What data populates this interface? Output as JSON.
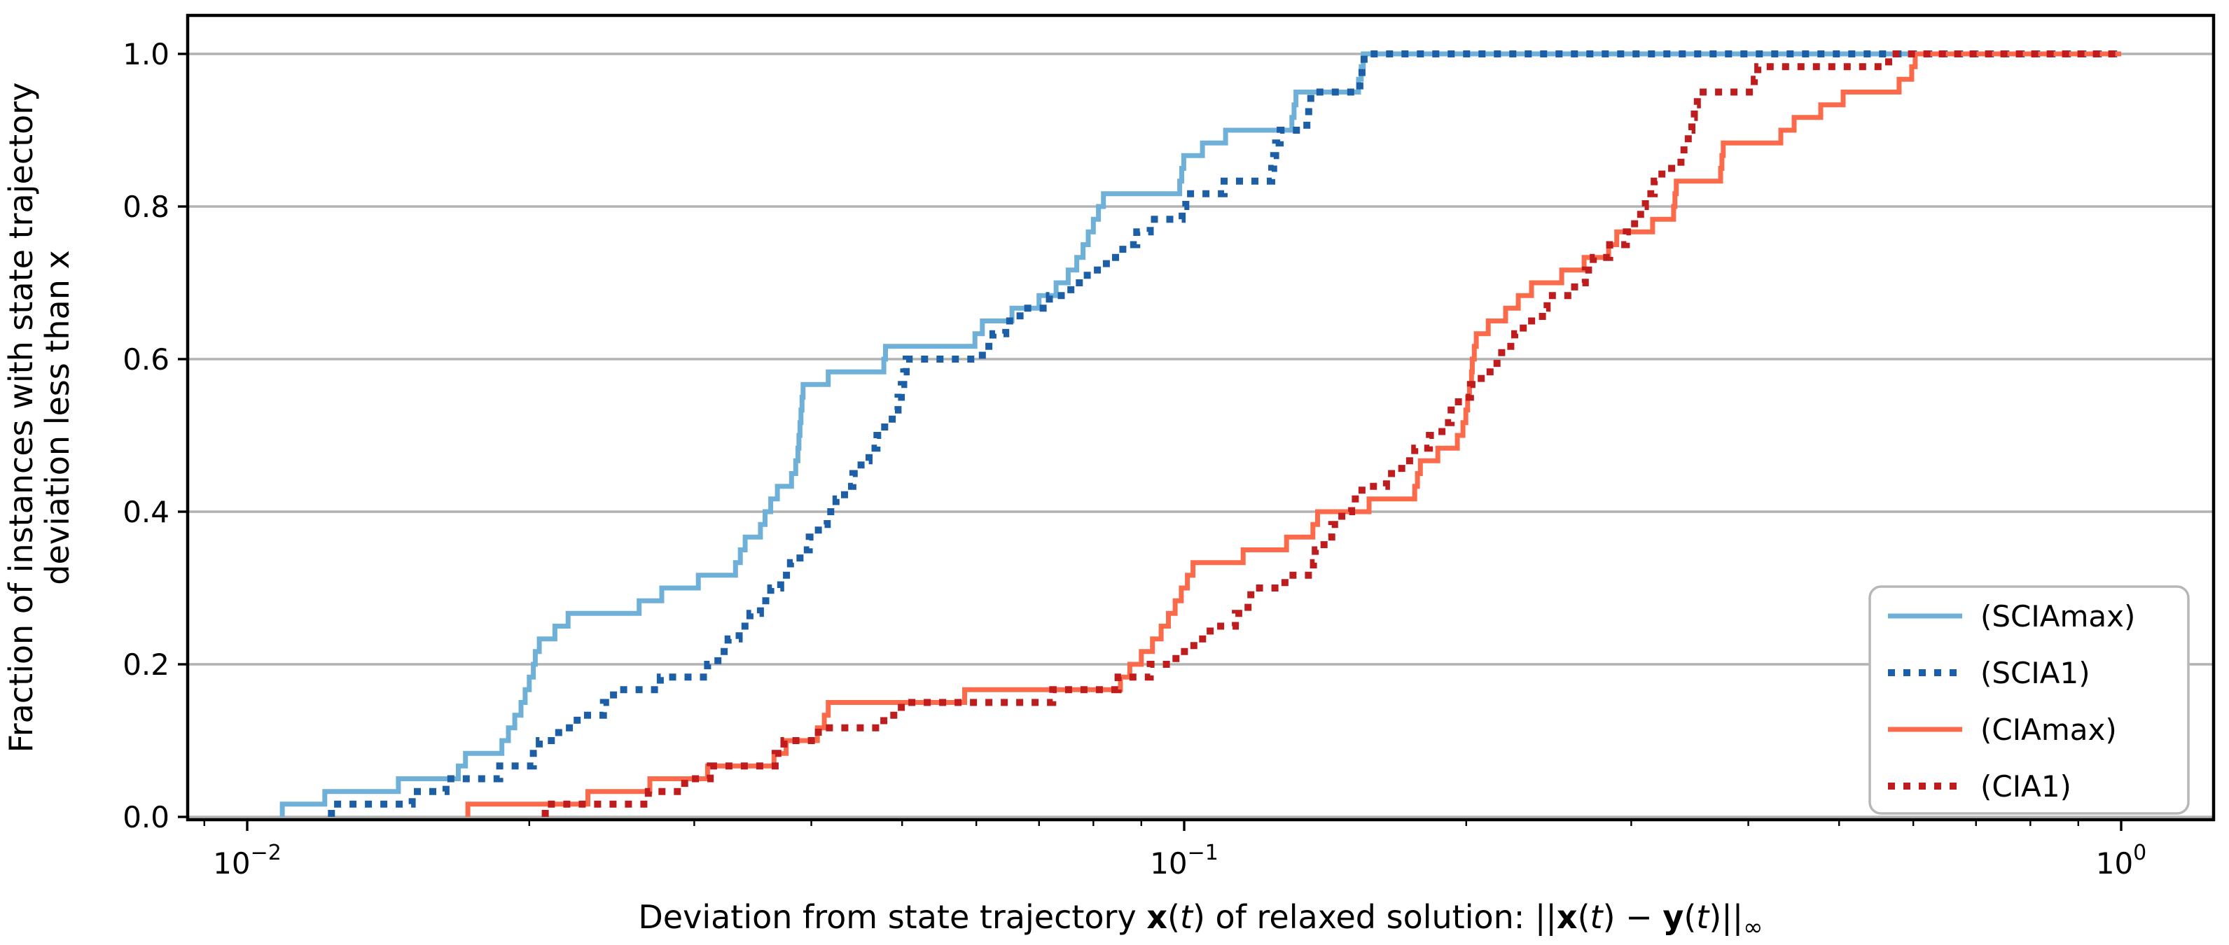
{
  "chart_data": {
    "type": "line",
    "subtype": "step-ecdf",
    "title": "",
    "xlabel_plain": "Deviation from state trajectory x(t) of relaxed solution: ||x(t) − y(t)||∞",
    "xlabel_segments": [
      {
        "t": "Deviation from state trajectory "
      },
      {
        "t": "x",
        "b": true
      },
      {
        "t": "("
      },
      {
        "t": "t",
        "i": true
      },
      {
        "t": ")"
      },
      {
        "t": " of relaxed solution: ||"
      },
      {
        "t": "x",
        "b": true
      },
      {
        "t": "("
      },
      {
        "t": "t",
        "i": true
      },
      {
        "t": ")"
      },
      {
        "t": " − "
      },
      {
        "t": "y",
        "b": true
      },
      {
        "t": "("
      },
      {
        "t": "t",
        "i": true
      },
      {
        "t": ")"
      },
      {
        "t": "||"
      },
      {
        "t": "∞",
        "sub": true
      }
    ],
    "ylabel_lines": [
      "Fraction of instances with state trajectory",
      "deviation less than x"
    ],
    "x_scale": "log",
    "xlim": [
      0.00864,
      1.255
    ],
    "ylim": [
      0,
      1.0505
    ],
    "grid": "horizontal",
    "grid_color": "#b2b2b2",
    "legend_position": "lower right",
    "xticks": [
      {
        "v": 0.01,
        "base": "10",
        "exp": "−2"
      },
      {
        "v": 0.1,
        "base": "10",
        "exp": "−1"
      },
      {
        "v": 1,
        "base": "10",
        "exp": "0"
      }
    ],
    "minor_xticks": [
      0.009,
      0.02,
      0.03,
      0.04,
      0.05,
      0.06,
      0.07,
      0.08,
      0.09,
      0.2,
      0.3,
      0.4,
      0.5,
      0.6,
      0.7,
      0.8,
      0.9
    ],
    "yticks": [
      {
        "v": 0.0,
        "label": "0.0"
      },
      {
        "v": 0.2,
        "label": "0.2"
      },
      {
        "v": 0.4,
        "label": "0.4"
      },
      {
        "v": 0.6,
        "label": "0.6"
      },
      {
        "v": 0.8,
        "label": "0.8"
      },
      {
        "v": 1.0,
        "label": "1.0"
      }
    ],
    "series": [
      {
        "name": "(SCIAmax)",
        "color": "#6fb0d8",
        "line_style": "solid",
        "x_end": 1.0,
        "points": [
          [
            0.0109,
            0.0167
          ],
          [
            0.0121,
            0.0333
          ],
          [
            0.0145,
            0.05
          ],
          [
            0.0168,
            0.0667
          ],
          [
            0.0171,
            0.0833
          ],
          [
            0.0187,
            0.1
          ],
          [
            0.019,
            0.1167
          ],
          [
            0.0193,
            0.1333
          ],
          [
            0.0196,
            0.15
          ],
          [
            0.0198,
            0.1667
          ],
          [
            0.02,
            0.1833
          ],
          [
            0.0202,
            0.2
          ],
          [
            0.0203,
            0.2167
          ],
          [
            0.0205,
            0.2333
          ],
          [
            0.0213,
            0.25
          ],
          [
            0.022,
            0.2667
          ],
          [
            0.0262,
            0.2833
          ],
          [
            0.0277,
            0.3
          ],
          [
            0.0303,
            0.3167
          ],
          [
            0.0332,
            0.3333
          ],
          [
            0.0336,
            0.35
          ],
          [
            0.034,
            0.3667
          ],
          [
            0.0353,
            0.3833
          ],
          [
            0.0357,
            0.4
          ],
          [
            0.0362,
            0.4167
          ],
          [
            0.0368,
            0.4333
          ],
          [
            0.0381,
            0.45
          ],
          [
            0.0385,
            0.4667
          ],
          [
            0.0387,
            0.4833
          ],
          [
            0.0388,
            0.5
          ],
          [
            0.0389,
            0.5167
          ],
          [
            0.039,
            0.5333
          ],
          [
            0.0391,
            0.55
          ],
          [
            0.0392,
            0.5667
          ],
          [
            0.0417,
            0.5833
          ],
          [
            0.0478,
            0.6
          ],
          [
            0.048,
            0.6167
          ],
          [
            0.0598,
            0.6333
          ],
          [
            0.0609,
            0.65
          ],
          [
            0.0655,
            0.6667
          ],
          [
            0.07,
            0.6833
          ],
          [
            0.073,
            0.7
          ],
          [
            0.0752,
            0.7167
          ],
          [
            0.0768,
            0.7333
          ],
          [
            0.078,
            0.75
          ],
          [
            0.079,
            0.7667
          ],
          [
            0.08,
            0.7833
          ],
          [
            0.081,
            0.8
          ],
          [
            0.082,
            0.8167
          ],
          [
            0.0989,
            0.8333
          ],
          [
            0.0994,
            0.85
          ],
          [
            0.0999,
            0.8667
          ],
          [
            0.1046,
            0.8833
          ],
          [
            0.1107,
            0.9
          ],
          [
            0.1303,
            0.9167
          ],
          [
            0.131,
            0.9333
          ],
          [
            0.1316,
            0.95
          ],
          [
            0.1535,
            0.9667
          ],
          [
            0.1545,
            0.9833
          ],
          [
            0.1553,
            1.0
          ]
        ]
      },
      {
        "name": "(SCIA1)",
        "color": "#1d5fa6",
        "line_style": "dotted",
        "x_end": 1.0,
        "points": [
          [
            0.0123,
            0.0167
          ],
          [
            0.015,
            0.0333
          ],
          [
            0.0163,
            0.05
          ],
          [
            0.0186,
            0.0667
          ],
          [
            0.0202,
            0.0833
          ],
          [
            0.0205,
            0.1
          ],
          [
            0.0215,
            0.1167
          ],
          [
            0.0225,
            0.1333
          ],
          [
            0.024,
            0.15
          ],
          [
            0.0246,
            0.1667
          ],
          [
            0.0276,
            0.1833
          ],
          [
            0.031,
            0.2
          ],
          [
            0.0318,
            0.2167
          ],
          [
            0.0326,
            0.2333
          ],
          [
            0.0335,
            0.25
          ],
          [
            0.0344,
            0.2667
          ],
          [
            0.0353,
            0.2833
          ],
          [
            0.0362,
            0.3
          ],
          [
            0.0371,
            0.3167
          ],
          [
            0.038,
            0.3333
          ],
          [
            0.0389,
            0.35
          ],
          [
            0.0398,
            0.3667
          ],
          [
            0.0407,
            0.3833
          ],
          [
            0.0416,
            0.4
          ],
          [
            0.0425,
            0.4167
          ],
          [
            0.0434,
            0.4333
          ],
          [
            0.0443,
            0.45
          ],
          [
            0.0452,
            0.4667
          ],
          [
            0.0461,
            0.4833
          ],
          [
            0.047,
            0.5
          ],
          [
            0.0479,
            0.5167
          ],
          [
            0.0488,
            0.5333
          ],
          [
            0.0495,
            0.55
          ],
          [
            0.0499,
            0.5667
          ],
          [
            0.0502,
            0.5833
          ],
          [
            0.0505,
            0.6
          ],
          [
            0.0609,
            0.6167
          ],
          [
            0.0625,
            0.6333
          ],
          [
            0.0645,
            0.65
          ],
          [
            0.0668,
            0.6667
          ],
          [
            0.0718,
            0.6833
          ],
          [
            0.0757,
            0.7
          ],
          [
            0.0788,
            0.7167
          ],
          [
            0.0826,
            0.7333
          ],
          [
            0.086,
            0.75
          ],
          [
            0.089,
            0.7667
          ],
          [
            0.092,
            0.7833
          ],
          [
            0.0995,
            0.8
          ],
          [
            0.1004,
            0.8167
          ],
          [
            0.1103,
            0.8333
          ],
          [
            0.124,
            0.85
          ],
          [
            0.1246,
            0.8667
          ],
          [
            0.1252,
            0.8833
          ],
          [
            0.1266,
            0.9
          ],
          [
            0.1352,
            0.9167
          ],
          [
            0.1358,
            0.9333
          ],
          [
            0.1365,
            0.95
          ],
          [
            0.154,
            0.9667
          ],
          [
            0.1548,
            0.9833
          ],
          [
            0.1556,
            1.0
          ]
        ]
      },
      {
        "name": "(CIAmax)",
        "color": "#fb6a4a",
        "line_style": "solid",
        "x_end": 1.0,
        "points": [
          [
            0.0172,
            0.0167
          ],
          [
            0.0231,
            0.0333
          ],
          [
            0.0269,
            0.05
          ],
          [
            0.031,
            0.0667
          ],
          [
            0.0365,
            0.0833
          ],
          [
            0.0376,
            0.1
          ],
          [
            0.0406,
            0.1167
          ],
          [
            0.0413,
            0.1333
          ],
          [
            0.0417,
            0.15
          ],
          [
            0.0583,
            0.1667
          ],
          [
            0.0855,
            0.1833
          ],
          [
            0.0875,
            0.2
          ],
          [
            0.09,
            0.2167
          ],
          [
            0.0925,
            0.2333
          ],
          [
            0.0945,
            0.25
          ],
          [
            0.0962,
            0.2667
          ],
          [
            0.0978,
            0.2833
          ],
          [
            0.0993,
            0.3
          ],
          [
            0.1008,
            0.3167
          ],
          [
            0.1022,
            0.3333
          ],
          [
            0.1156,
            0.35
          ],
          [
            0.1286,
            0.3667
          ],
          [
            0.1372,
            0.3833
          ],
          [
            0.1388,
            0.4
          ],
          [
            0.1575,
            0.4167
          ],
          [
            0.1762,
            0.4333
          ],
          [
            0.1774,
            0.45
          ],
          [
            0.1787,
            0.4667
          ],
          [
            0.1865,
            0.4833
          ],
          [
            0.1957,
            0.5
          ],
          [
            0.1984,
            0.5167
          ],
          [
            0.1998,
            0.5333
          ],
          [
            0.2007,
            0.55
          ],
          [
            0.2016,
            0.5667
          ],
          [
            0.2026,
            0.5833
          ],
          [
            0.203,
            0.6
          ],
          [
            0.204,
            0.6167
          ],
          [
            0.205,
            0.6333
          ],
          [
            0.2111,
            0.65
          ],
          [
            0.2203,
            0.6667
          ],
          [
            0.2273,
            0.6833
          ],
          [
            0.2348,
            0.7
          ],
          [
            0.2529,
            0.7167
          ],
          [
            0.2672,
            0.7333
          ],
          [
            0.2838,
            0.75
          ],
          [
            0.2895,
            0.7667
          ],
          [
            0.3162,
            0.7833
          ],
          [
            0.3329,
            0.8
          ],
          [
            0.334,
            0.8167
          ],
          [
            0.3351,
            0.8333
          ],
          [
            0.3737,
            0.85
          ],
          [
            0.3749,
            0.8667
          ],
          [
            0.3761,
            0.8833
          ],
          [
            0.4333,
            0.9
          ],
          [
            0.4477,
            0.9167
          ],
          [
            0.4779,
            0.9333
          ],
          [
            0.505,
            0.95
          ],
          [
            0.5794,
            0.9667
          ],
          [
            0.5977,
            0.9833
          ],
          [
            0.6028,
            1.0
          ]
        ]
      },
      {
        "name": "(CIA1)",
        "color": "#bf1d1d",
        "line_style": "dotted",
        "x_end": 1.0,
        "points": [
          [
            0.0208,
            0.0167
          ],
          [
            0.0268,
            0.0333
          ],
          [
            0.0293,
            0.05
          ],
          [
            0.0312,
            0.0667
          ],
          [
            0.0366,
            0.0833
          ],
          [
            0.0374,
            0.1
          ],
          [
            0.0407,
            0.1167
          ],
          [
            0.0478,
            0.1333
          ],
          [
            0.0499,
            0.15
          ],
          [
            0.0724,
            0.1667
          ],
          [
            0.085,
            0.1833
          ],
          [
            0.092,
            0.2
          ],
          [
            0.098,
            0.2167
          ],
          [
            0.1024,
            0.2333
          ],
          [
            0.1066,
            0.25
          ],
          [
            0.1134,
            0.2667
          ],
          [
            0.117,
            0.2833
          ],
          [
            0.1178,
            0.3
          ],
          [
            0.1281,
            0.3167
          ],
          [
            0.1374,
            0.3333
          ],
          [
            0.138,
            0.35
          ],
          [
            0.141,
            0.3667
          ],
          [
            0.1437,
            0.3833
          ],
          [
            0.1473,
            0.4
          ],
          [
            0.1509,
            0.4167
          ],
          [
            0.1548,
            0.4333
          ],
          [
            0.1644,
            0.45
          ],
          [
            0.1707,
            0.4667
          ],
          [
            0.1762,
            0.4833
          ],
          [
            0.1827,
            0.5
          ],
          [
            0.1884,
            0.5167
          ],
          [
            0.1927,
            0.5333
          ],
          [
            0.1962,
            0.55
          ],
          [
            0.2021,
            0.5667
          ],
          [
            0.2075,
            0.5833
          ],
          [
            0.2157,
            0.6
          ],
          [
            0.2182,
            0.6167
          ],
          [
            0.2253,
            0.6333
          ],
          [
            0.2301,
            0.65
          ],
          [
            0.2412,
            0.6667
          ],
          [
            0.244,
            0.6833
          ],
          [
            0.261,
            0.7
          ],
          [
            0.268,
            0.7167
          ],
          [
            0.2733,
            0.7333
          ],
          [
            0.2845,
            0.75
          ],
          [
            0.2964,
            0.7667
          ],
          [
            0.3025,
            0.7833
          ],
          [
            0.307,
            0.8
          ],
          [
            0.3106,
            0.8167
          ],
          [
            0.3174,
            0.8333
          ],
          [
            0.3235,
            0.85
          ],
          [
            0.339,
            0.8667
          ],
          [
            0.3415,
            0.8833
          ],
          [
            0.3451,
            0.9
          ],
          [
            0.3482,
            0.9167
          ],
          [
            0.3503,
            0.9333
          ],
          [
            0.3529,
            0.95
          ],
          [
            0.4059,
            0.9667
          ],
          [
            0.4094,
            0.9833
          ],
          [
            0.5648,
            1.0
          ]
        ]
      }
    ]
  },
  "legend": {
    "entries": [
      "(SCIAmax)",
      "(SCIA1)",
      "(CIAmax)",
      "(CIA1)"
    ],
    "border_color": "#b7b7b7",
    "background": "#ffffff"
  },
  "colors": {
    "sciamax": "#6fb0d8",
    "scia1": "#1d5fa6",
    "ciamax": "#fb6a4a",
    "cia1": "#bf1d1d",
    "grid": "#b2b2b2",
    "spine": "#000000"
  }
}
